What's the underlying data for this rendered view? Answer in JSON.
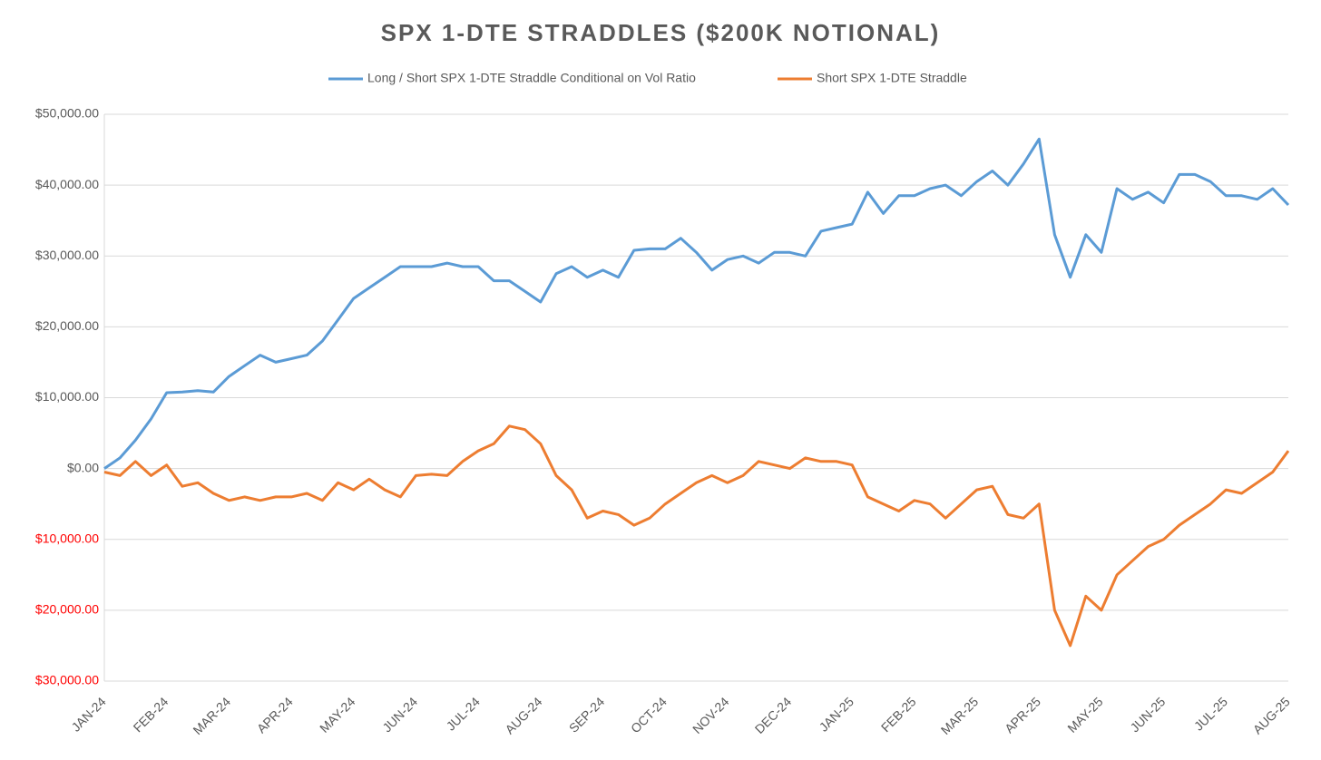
{
  "chart_data": {
    "type": "line",
    "title": "SPX 1-DTE STRADDLES ($200K NOTIONAL)",
    "categories": [
      "JAN-24",
      null,
      null,
      null,
      "FEB-24",
      null,
      null,
      null,
      "MAR-24",
      null,
      null,
      null,
      "APR-24",
      null,
      null,
      null,
      "MAY-24",
      null,
      null,
      null,
      "JUN-24",
      null,
      null,
      null,
      "JUL-24",
      null,
      null,
      null,
      "AUG-24",
      null,
      null,
      null,
      "SEP-24",
      null,
      null,
      null,
      "OCT-24",
      null,
      null,
      null,
      "NOV-24",
      null,
      null,
      null,
      "DEC-24",
      null,
      null,
      null,
      "JAN-25",
      null,
      null,
      null,
      "FEB-25",
      null,
      null,
      null,
      "MAR-25",
      null,
      null,
      null,
      "APR-25",
      null,
      null,
      null,
      "MAY-25",
      null,
      null,
      null,
      "JUN-25",
      null,
      null,
      null,
      "JUL-25",
      null,
      null,
      null,
      "AUG-25"
    ],
    "series": [
      {
        "name": "Long / Short SPX 1-DTE Straddle Conditional on Vol Ratio",
        "color": "#5b9bd5",
        "values": [
          0,
          1500,
          4000,
          7000,
          10700,
          10800,
          11000,
          10800,
          13000,
          14500,
          16000,
          15000,
          15500,
          16000,
          18000,
          21000,
          24000,
          25500,
          27000,
          28500,
          28500,
          28500,
          29000,
          28500,
          28500,
          26500,
          26500,
          25000,
          23500,
          27500,
          28500,
          27000,
          28000,
          27000,
          30800,
          31000,
          31000,
          32500,
          30500,
          28000,
          29500,
          30000,
          29000,
          30500,
          30500,
          30000,
          33500,
          34000,
          34500,
          39000,
          36000,
          38500,
          38500,
          39500,
          40000,
          38500,
          40500,
          42000,
          40000,
          43000,
          46500,
          33000,
          27000,
          33000,
          30500,
          39500,
          38000,
          39000,
          37500,
          41500,
          41500,
          40500,
          38500,
          38500,
          38000,
          39500,
          37200
        ]
      },
      {
        "name": "Short SPX 1-DTE Straddle",
        "color": "#ed7d31",
        "values": [
          -500,
          -1000,
          1000,
          -1000,
          500,
          -2500,
          -2000,
          -3500,
          -4500,
          -4000,
          -4500,
          -4000,
          -4000,
          -3500,
          -4500,
          -2000,
          -3000,
          -1500,
          -3000,
          -4000,
          -1000,
          -800,
          -1000,
          1000,
          2500,
          3500,
          6000,
          5500,
          3500,
          -1000,
          -3000,
          -7000,
          -6000,
          -6500,
          -8000,
          -7000,
          -5000,
          -3500,
          -2000,
          -1000,
          -2000,
          -1000,
          1000,
          500,
          0,
          1500,
          1000,
          1000,
          500,
          -4000,
          -5000,
          -6000,
          -4500,
          -5000,
          -7000,
          -5000,
          -3000,
          -2500,
          -6500,
          -7000,
          -5000,
          -20000,
          -25000,
          -18000,
          -20000,
          -15000,
          -13000,
          -11000,
          -10000,
          -8000,
          -6500,
          -5000,
          -3000,
          -3500,
          -2000,
          -500,
          2500
        ]
      }
    ],
    "ylim": [
      -30000,
      50000
    ],
    "yticks": [
      {
        "value": -30000,
        "label": "$30,000.00"
      },
      {
        "value": -20000,
        "label": "$20,000.00"
      },
      {
        "value": -10000,
        "label": "$10,000.00"
      },
      {
        "value": 0,
        "label": "$0.00"
      },
      {
        "value": 10000,
        "label": "$10,000.00"
      },
      {
        "value": 20000,
        "label": "$20,000.00"
      },
      {
        "value": 30000,
        "label": "$30,000.00"
      },
      {
        "value": 40000,
        "label": "$40,000.00"
      },
      {
        "value": 50000,
        "label": "$50,000.00"
      }
    ],
    "negative_tick_color": "#ff0000",
    "grid": true,
    "legend": "top"
  }
}
